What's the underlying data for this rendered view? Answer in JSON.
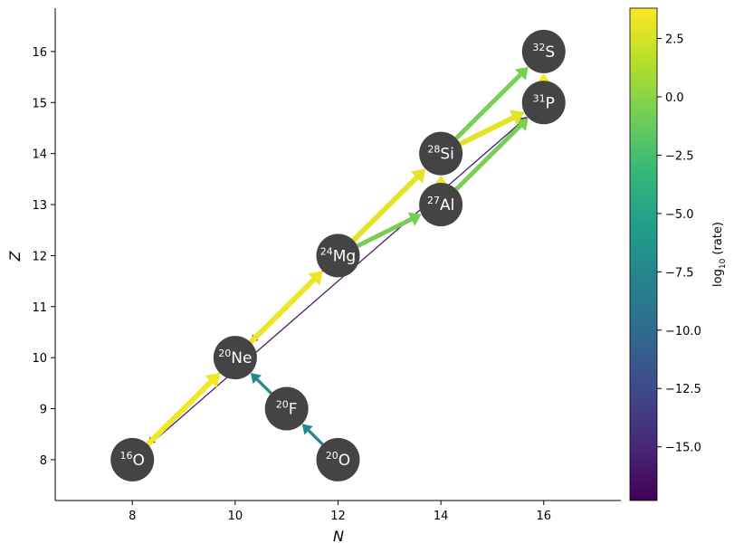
{
  "chart_data": {
    "type": "network",
    "xlabel": "N",
    "ylabel": "Z",
    "xlim": [
      6.5,
      17.5
    ],
    "ylim": [
      7.2,
      16.85
    ],
    "xticks": [
      8,
      10,
      12,
      14,
      16
    ],
    "yticks": [
      8,
      9,
      10,
      11,
      12,
      13,
      14,
      15,
      16
    ],
    "colorbar": {
      "label_prefix": "log",
      "label_sub": "10",
      "label_suffix": " (rate)",
      "min": -17.3,
      "max": 3.8,
      "ticks": [
        2.5,
        0.0,
        -2.5,
        -5.0,
        -7.5,
        -10.0,
        -12.5,
        -15.0
      ],
      "tick_labels": [
        "2.5",
        "0.0",
        "−2.5",
        "−5.0",
        "−7.5",
        "−10.0",
        "−12.5",
        "−15.0"
      ],
      "stops": [
        "#440154",
        "#482878",
        "#3e4989",
        "#31688e",
        "#26828e",
        "#1f9e89",
        "#35b779",
        "#6ece58",
        "#b5de2b",
        "#fde725"
      ]
    },
    "nodes": [
      {
        "id": "O16",
        "mass": "16",
        "element": "O",
        "N": 8,
        "Z": 8
      },
      {
        "id": "Ne20",
        "mass": "20",
        "element": "Ne",
        "N": 10,
        "Z": 10
      },
      {
        "id": "F20",
        "mass": "20",
        "element": "F",
        "N": 11,
        "Z": 9
      },
      {
        "id": "O20",
        "mass": "20",
        "element": "O",
        "N": 12,
        "Z": 8
      },
      {
        "id": "Mg24",
        "mass": "24",
        "element": "Mg",
        "N": 12,
        "Z": 12
      },
      {
        "id": "Si28",
        "mass": "28",
        "element": "Si",
        "N": 14,
        "Z": 14
      },
      {
        "id": "Al27",
        "mass": "27",
        "element": "Al",
        "N": 14,
        "Z": 13
      },
      {
        "id": "P31",
        "mass": "31",
        "element": "P",
        "N": 16,
        "Z": 15
      },
      {
        "id": "S32",
        "mass": "32",
        "element": "S",
        "N": 16,
        "Z": 16
      }
    ],
    "edges": [
      {
        "from": "O16",
        "to": "Ne20",
        "rate": 3.5
      },
      {
        "from": "Ne20",
        "to": "Mg24",
        "rate": 3.3
      },
      {
        "from": "Mg24",
        "to": "Si28",
        "rate": 3.0
      },
      {
        "from": "Al27",
        "to": "Si28",
        "rate": 3.2
      },
      {
        "from": "Si28",
        "to": "P31",
        "rate": 3.0
      },
      {
        "from": "P31",
        "to": "S32",
        "rate": 3.6
      },
      {
        "from": "Mg24",
        "to": "Al27",
        "rate": -0.7
      },
      {
        "from": "Al27",
        "to": "P31",
        "rate": -0.7
      },
      {
        "from": "Si28",
        "to": "S32",
        "rate": -0.6
      },
      {
        "from": "Si28",
        "to": "P31",
        "rate": -2.0
      },
      {
        "from": "O20",
        "to": "F20",
        "rate": -7.6
      },
      {
        "from": "F20",
        "to": "Ne20",
        "rate": -7.6
      },
      {
        "from": "Ne20",
        "to": "O16",
        "rate": -16.2
      },
      {
        "from": "Mg24",
        "to": "Ne20",
        "rate": -16.2
      },
      {
        "from": "Ne20",
        "to": "Si28",
        "rate": -16.2
      },
      {
        "from": "O16",
        "to": "P31",
        "rate": -16.2
      }
    ]
  }
}
